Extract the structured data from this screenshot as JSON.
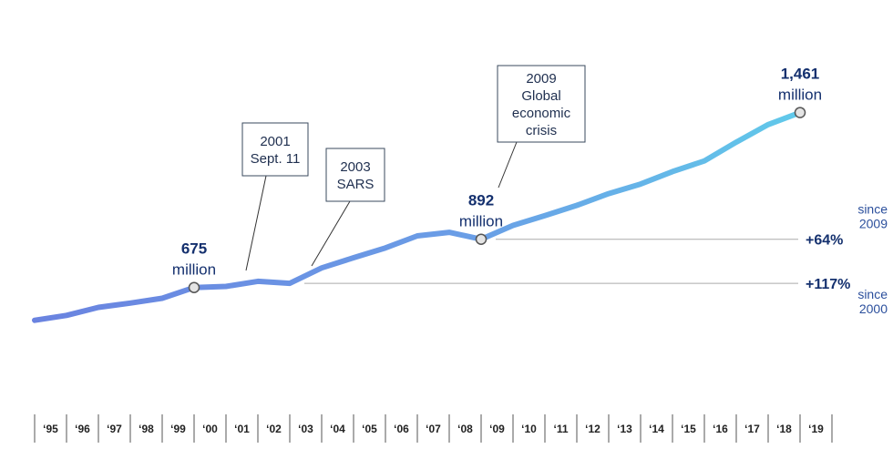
{
  "chart_data": {
    "type": "line",
    "title": "",
    "xlabel": "",
    "ylabel": "",
    "categories": [
      "‘95",
      "‘96",
      "‘97",
      "‘98",
      "‘99",
      "‘00",
      "‘01",
      "‘02",
      "‘03",
      "‘04",
      "‘05",
      "‘06",
      "‘07",
      "‘08",
      "‘09",
      "‘10",
      "‘11",
      "‘12",
      "‘13",
      "‘14",
      "‘15",
      "‘16",
      "‘17",
      "‘18",
      "‘19"
    ],
    "series": [
      {
        "values": [
          528,
          550,
          586,
          605,
          627,
          675,
          680,
          703,
          694,
          763,
          809,
          853,
          907,
          923,
          892,
          954,
          998,
          1044,
          1097,
          1140,
          1196,
          1244,
          1328,
          1407,
          1461
        ]
      }
    ],
    "ylim": [
      400,
      1600
    ],
    "grid": false,
    "colors": {
      "line_start": "#6a83e0",
      "line_end": "#60cdea",
      "text_dark": "#14306e",
      "text_blue": "#2b4f9c",
      "marker_stroke": "#555555",
      "ref_line": "#aaaaaa"
    },
    "point_labels": [
      {
        "index": 5,
        "value": "675",
        "unit": "million"
      },
      {
        "index": 14,
        "value": "892",
        "unit": "million"
      },
      {
        "index": 24,
        "value": "1,461",
        "unit": "million"
      }
    ],
    "annotations": [
      {
        "index": 6,
        "lines": [
          "2001",
          "Sept. 11"
        ]
      },
      {
        "index": 8,
        "lines": [
          "2003",
          "SARS"
        ]
      },
      {
        "index": 14,
        "lines": [
          "2009",
          "Global",
          "economic",
          "crisis"
        ]
      }
    ],
    "growth": [
      {
        "from_index": 14,
        "value": "+64%",
        "since_lines": [
          "since",
          "2009"
        ]
      },
      {
        "from_index": 8,
        "value": "+117%",
        "since_lines": [
          "since",
          "2000"
        ]
      }
    ]
  }
}
